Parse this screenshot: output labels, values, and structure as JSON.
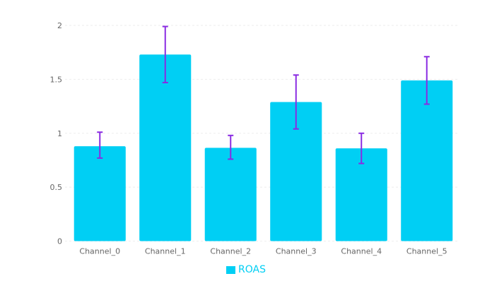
{
  "chart_data": {
    "type": "bar",
    "categories": [
      "Channel_0",
      "Channel_1",
      "Channel_2",
      "Channel_3",
      "Channel_4",
      "Channel_5"
    ],
    "series": [
      {
        "name": "ROAS",
        "values": [
          0.88,
          1.73,
          0.865,
          1.29,
          0.86,
          1.49
        ],
        "error_low": [
          0.77,
          1.47,
          0.76,
          1.04,
          0.72,
          1.27
        ],
        "error_high": [
          1.01,
          1.99,
          0.98,
          1.54,
          1.0,
          1.71
        ]
      }
    ],
    "yticks": [
      "0",
      "0.5",
      "1",
      "1.5",
      "2"
    ],
    "ylim": [
      0,
      2
    ],
    "grid": true,
    "legend": "bottom",
    "colors": {
      "bar": "#00cff4",
      "error": "#8a2be2",
      "grid": "#eeeeee",
      "text": "#666666"
    }
  }
}
